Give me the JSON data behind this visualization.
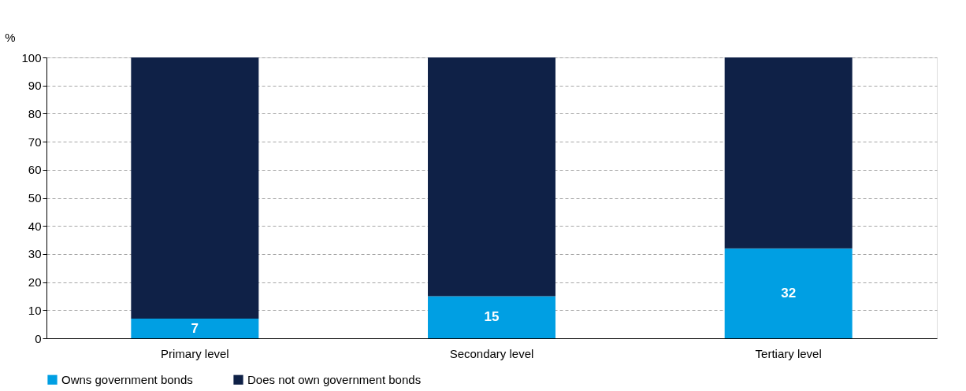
{
  "chart_data": {
    "type": "bar",
    "stacked": true,
    "ylabel": "%",
    "categories": [
      "Primary level",
      "Secondary level",
      "Tertiary level"
    ],
    "series": [
      {
        "name": "Owns government bonds",
        "color": "#009fe3",
        "values": [
          7,
          15,
          32
        ],
        "value_labels": [
          "7",
          "15",
          "32"
        ]
      },
      {
        "name": "Does not own government bonds",
        "color": "#0f2147",
        "values": [
          93,
          85,
          68
        ]
      }
    ],
    "ylim": [
      0,
      100
    ],
    "yticks": [
      0,
      10,
      20,
      30,
      40,
      50,
      60,
      70,
      80,
      90,
      100
    ],
    "grid": "y",
    "legend": "bottom"
  }
}
